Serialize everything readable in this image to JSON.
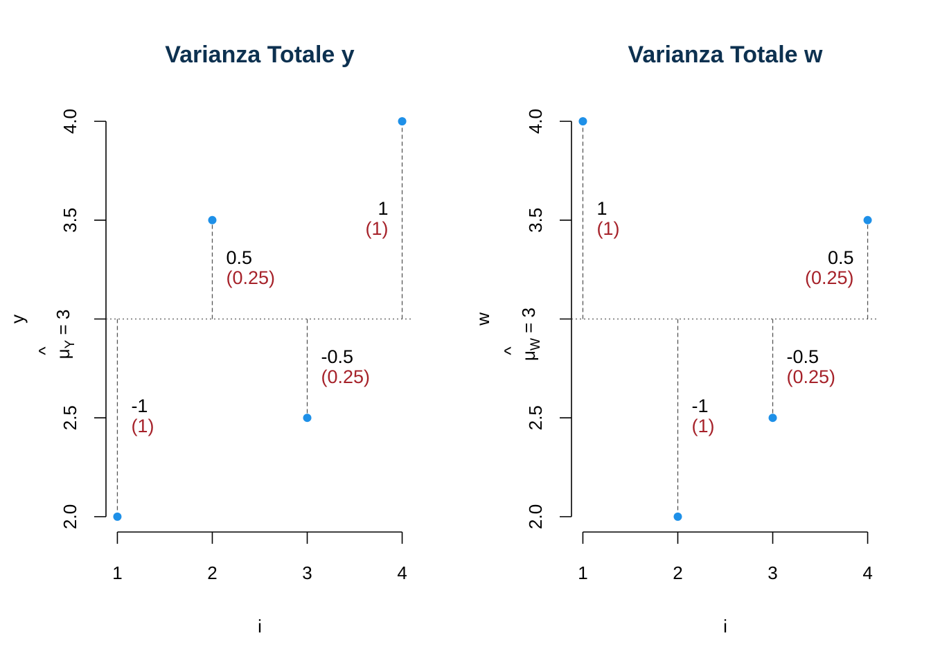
{
  "colors": {
    "title": "#0D3150",
    "point": "#1E90E8",
    "squared_label": "#A6222A",
    "axis": "#000000",
    "guide": "#555555"
  },
  "chart_data": [
    {
      "type": "scatter",
      "title": "Varianza Totale y",
      "xlabel": "i",
      "ylabel": "y",
      "mean_label": {
        "letter": "μ",
        "hat": "^",
        "subscript": "Y",
        "text": " = 3"
      },
      "mean": 3,
      "x": [
        1,
        2,
        3,
        4
      ],
      "y": [
        2,
        3.5,
        2.5,
        4
      ],
      "deviations": [
        "-1",
        "0.5",
        "-0.5",
        "1"
      ],
      "squared_deviations": [
        "(1)",
        "(0.25)",
        "(0.25)",
        "(1)"
      ],
      "xticks": [
        "1",
        "2",
        "3",
        "4"
      ],
      "yticks": [
        "2.0",
        "2.5",
        "3.5",
        "4.0"
      ],
      "xlim": [
        0.88,
        4.12
      ],
      "ylim": [
        1.94,
        4.06
      ]
    },
    {
      "type": "scatter",
      "title": "Varianza Totale w",
      "xlabel": "i",
      "ylabel": "w",
      "mean_label": {
        "letter": "μ",
        "hat": "^",
        "subscript": "W",
        "text": " = 3"
      },
      "mean": 3,
      "x": [
        1,
        2,
        3,
        4
      ],
      "y": [
        4,
        2,
        2.5,
        3.5
      ],
      "deviations": [
        "1",
        "-1",
        "-0.5",
        "0.5"
      ],
      "squared_deviations": [
        "(1)",
        "(1)",
        "(0.25)",
        "(0.25)"
      ],
      "xticks": [
        "1",
        "2",
        "3",
        "4"
      ],
      "yticks": [
        "2.0",
        "2.5",
        "3.5",
        "4.0"
      ],
      "xlim": [
        0.88,
        4.12
      ],
      "ylim": [
        1.94,
        4.06
      ]
    }
  ]
}
